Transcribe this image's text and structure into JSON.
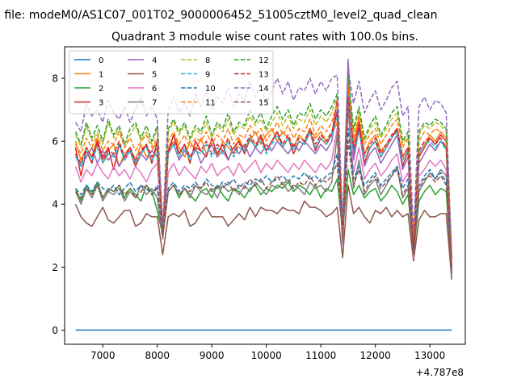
{
  "figure": {
    "suptitle": "n file: modeM0/AS1C07_001T02_9000006452_51005cztM0_level2_quad_clean",
    "title": "Quadrant 3 module wise count rates with 100.0s bins."
  },
  "chart_data": {
    "type": "line",
    "title": "Quadrant 3 module wise count rates with 100.0s bins.",
    "xlabel": "",
    "ylabel": "",
    "x_offset_label": "+4.787e8",
    "xlim": [
      6300,
      13650
    ],
    "ylim": [
      -0.45,
      9.0
    ],
    "x_ticks": [
      7000,
      8000,
      9000,
      10000,
      11000,
      12000,
      13000
    ],
    "x_tick_labels": [
      "7000",
      "8000",
      "9000",
      "10000",
      "11000",
      "12000",
      "13000"
    ],
    "y_ticks": [
      0,
      2,
      4,
      6,
      8
    ],
    "y_tick_labels": [
      "0",
      "2",
      "4",
      "6",
      "8"
    ],
    "grid": false,
    "legend_placement": "top-left",
    "legend_columns": 4,
    "x_start": 6500,
    "x_step": 100,
    "series": [
      {
        "name": "0",
        "color": "#1f77b4",
        "dash": "solid",
        "values": [
          0,
          0,
          0,
          0,
          0,
          0,
          0,
          0,
          0,
          0,
          0,
          0,
          0,
          0,
          0,
          0,
          0,
          0,
          0,
          0,
          0,
          0,
          0,
          0,
          0,
          0,
          0,
          0,
          0,
          0,
          0,
          0,
          0,
          0,
          0,
          0,
          0,
          0,
          0,
          0,
          0,
          0,
          0,
          0,
          0,
          0,
          0,
          0,
          0,
          0,
          0,
          0,
          0,
          0,
          0,
          0,
          0,
          0,
          0,
          0,
          0,
          0,
          0,
          0,
          0,
          0,
          0,
          0,
          0,
          0
        ]
      },
      {
        "name": "1",
        "color": "#ff7f0e",
        "dash": "solid",
        "values": [
          6.0,
          5.4,
          5.8,
          5.5,
          6.1,
          5.3,
          5.7,
          5.9,
          5.2,
          5.6,
          5.8,
          5.4,
          5.9,
          5.5,
          5.7,
          6.0,
          2.9,
          5.6,
          6.2,
          5.8,
          5.5,
          6.0,
          5.7,
          6.1,
          5.6,
          5.9,
          5.5,
          6.0,
          5.8,
          5.6,
          6.1,
          5.7,
          6.0,
          6.3,
          5.9,
          6.2,
          6.4,
          6.0,
          6.3,
          6.1,
          5.8,
          6.2,
          6.0,
          6.4,
          6.1,
          6.3,
          6.0,
          6.2,
          6.6,
          3.2,
          7.9,
          5.9,
          6.8,
          5.6,
          6.0,
          6.2,
          5.7,
          5.9,
          6.1,
          6.4,
          5.5,
          5.8,
          2.6,
          5.6,
          5.9,
          6.2,
          6.0,
          6.3,
          6.1,
          2.1
        ]
      },
      {
        "name": "2",
        "color": "#2ca02c",
        "dash": "solid",
        "values": [
          4.5,
          4.1,
          4.6,
          4.3,
          4.7,
          4.2,
          4.5,
          4.4,
          4.6,
          4.2,
          4.5,
          4.3,
          4.1,
          4.6,
          4.4,
          3.8,
          3.0,
          4.4,
          4.6,
          4.2,
          4.5,
          4.3,
          4.1,
          4.4,
          4.5,
          4.2,
          4.6,
          4.3,
          4.1,
          4.5,
          4.4,
          4.2,
          4.5,
          4.6,
          4.3,
          4.5,
          4.4,
          4.6,
          4.5,
          4.7,
          4.4,
          4.6,
          4.5,
          4.3,
          4.6,
          4.2,
          4.5,
          4.4,
          4.8,
          3.1,
          5.1,
          4.3,
          4.6,
          4.2,
          4.4,
          4.5,
          4.1,
          4.3,
          4.6,
          4.4,
          4.0,
          4.3,
          2.4,
          4.1,
          4.4,
          4.6,
          4.3,
          4.5,
          4.4,
          1.8
        ]
      },
      {
        "name": "3",
        "color": "#d62728",
        "dash": "solid",
        "values": [
          5.8,
          4.9,
          5.7,
          5.3,
          6.0,
          5.5,
          5.8,
          5.1,
          5.9,
          5.4,
          5.7,
          5.2,
          5.6,
          5.9,
          5.3,
          6.0,
          3.1,
          5.7,
          6.2,
          5.6,
          5.9,
          5.3,
          6.0,
          5.7,
          5.5,
          6.1,
          5.6,
          5.9,
          5.4,
          5.8,
          6.0,
          5.6,
          6.1,
          5.8,
          6.2,
          5.7,
          6.0,
          6.3,
          5.8,
          6.1,
          5.6,
          6.0,
          5.9,
          6.3,
          5.7,
          6.1,
          5.9,
          6.2,
          7.3,
          3.0,
          7.6,
          5.6,
          6.6,
          5.3,
          5.8,
          6.0,
          5.5,
          5.8,
          6.1,
          6.4,
          5.2,
          5.7,
          2.4,
          5.5,
          5.8,
          6.1,
          5.9,
          6.2,
          6.0,
          2.0
        ]
      },
      {
        "name": "4",
        "color": "#9467bd",
        "dash": "solid",
        "values": [
          5.6,
          5.2,
          5.5,
          5.8,
          5.3,
          5.7,
          5.4,
          5.6,
          5.2,
          5.5,
          5.8,
          5.3,
          5.6,
          5.4,
          5.7,
          5.5,
          2.9,
          5.6,
          5.9,
          5.4,
          5.7,
          5.5,
          5.8,
          5.3,
          5.6,
          5.9,
          5.5,
          5.7,
          5.4,
          5.8,
          5.6,
          5.9,
          5.5,
          5.8,
          5.6,
          5.9,
          5.7,
          6.0,
          5.8,
          5.6,
          5.9,
          5.7,
          6.0,
          5.8,
          5.6,
          5.9,
          5.7,
          6.0,
          7.0,
          3.0,
          8.6,
          5.4,
          6.4,
          5.2,
          5.6,
          5.8,
          5.3,
          5.6,
          5.9,
          6.2,
          5.1,
          5.5,
          2.3,
          5.3,
          5.6,
          5.9,
          5.7,
          6.0,
          5.8,
          1.9
        ]
      },
      {
        "name": "5",
        "color": "#8c564b",
        "dash": "solid",
        "values": [
          4.0,
          3.6,
          3.4,
          3.3,
          3.6,
          3.9,
          3.5,
          3.4,
          3.6,
          3.8,
          3.8,
          3.3,
          3.4,
          3.7,
          3.6,
          3.6,
          2.4,
          3.6,
          3.7,
          3.6,
          3.8,
          3.3,
          3.4,
          3.7,
          3.9,
          3.6,
          3.6,
          3.6,
          3.3,
          3.5,
          3.7,
          3.5,
          3.9,
          3.6,
          3.9,
          3.8,
          3.8,
          3.7,
          3.9,
          3.8,
          3.8,
          3.7,
          4.1,
          3.9,
          3.9,
          3.8,
          3.6,
          3.7,
          3.9,
          2.3,
          4.6,
          3.7,
          3.9,
          3.6,
          3.4,
          3.8,
          3.7,
          3.9,
          3.6,
          3.8,
          3.6,
          3.7,
          2.2,
          3.5,
          3.8,
          3.6,
          3.6,
          3.7,
          3.7,
          1.6
        ]
      },
      {
        "name": "6",
        "color": "#e377c2",
        "dash": "solid",
        "values": [
          5.2,
          4.7,
          5.1,
          4.9,
          5.3,
          5.0,
          4.8,
          5.2,
          4.9,
          5.1,
          4.8,
          5.2,
          5.0,
          4.7,
          5.1,
          5.3,
          2.9,
          5.0,
          5.3,
          4.9,
          5.2,
          5.0,
          4.8,
          5.2,
          5.0,
          5.3,
          4.9,
          5.1,
          5.2,
          4.9,
          5.3,
          5.0,
          5.2,
          5.4,
          5.0,
          5.3,
          5.1,
          5.4,
          5.2,
          5.0,
          5.3,
          5.1,
          5.4,
          5.2,
          5.0,
          5.3,
          5.1,
          5.4,
          6.4,
          2.7,
          7.2,
          5.0,
          5.8,
          4.8,
          5.1,
          5.3,
          4.9,
          5.1,
          5.4,
          5.6,
          4.7,
          5.0,
          2.3,
          4.9,
          5.1,
          5.4,
          5.2,
          5.4,
          5.1,
          1.9
        ]
      },
      {
        "name": "7",
        "color": "#7f7f7f",
        "dash": "solid",
        "values": [
          4.4,
          4.0,
          4.5,
          4.2,
          4.6,
          4.1,
          4.4,
          4.3,
          4.5,
          4.1,
          4.4,
          4.2,
          4.6,
          4.3,
          4.5,
          4.2,
          2.9,
          4.4,
          4.6,
          4.3,
          4.5,
          4.2,
          4.6,
          4.4,
          4.3,
          4.5,
          4.2,
          4.6,
          4.4,
          4.5,
          4.3,
          4.6,
          4.4,
          4.7,
          4.5,
          4.3,
          4.6,
          4.5,
          4.7,
          4.4,
          4.6,
          4.5,
          4.3,
          4.7,
          4.5,
          4.6,
          4.4,
          4.7,
          6.2,
          2.8,
          7.1,
          4.5,
          5.4,
          4.3,
          4.6,
          4.8,
          4.3,
          4.6,
          4.9,
          5.2,
          4.2,
          4.5,
          2.4,
          4.4,
          4.7,
          5.0,
          4.8,
          5.1,
          4.9,
          1.7
        ]
      },
      {
        "name": "8",
        "color": "#bcbd22",
        "dash": "dashed",
        "values": [
          6.2,
          5.8,
          6.5,
          6.0,
          6.3,
          5.9,
          6.6,
          6.1,
          6.4,
          5.8,
          6.2,
          6.5,
          6.0,
          6.3,
          5.9,
          6.4,
          3.2,
          6.3,
          6.6,
          6.2,
          6.5,
          6.0,
          6.4,
          6.2,
          6.6,
          6.1,
          6.5,
          6.3,
          6.7,
          6.2,
          6.5,
          6.4,
          6.8,
          6.5,
          6.7,
          6.3,
          6.6,
          6.9,
          6.5,
          6.8,
          6.4,
          6.7,
          6.6,
          7.0,
          6.5,
          6.8,
          6.6,
          6.9,
          7.4,
          3.3,
          8.0,
          6.3,
          7.0,
          6.0,
          6.4,
          6.6,
          6.1,
          6.4,
          6.7,
          6.9,
          5.9,
          6.2,
          2.8,
          6.2,
          6.5,
          6.4,
          6.6,
          6.5,
          6.3,
          2.2
        ]
      },
      {
        "name": "9",
        "color": "#17becf",
        "dash": "dashed",
        "values": [
          5.5,
          5.2,
          5.7,
          5.4,
          5.8,
          5.3,
          5.6,
          5.5,
          5.9,
          5.4,
          5.7,
          5.3,
          5.6,
          5.8,
          5.4,
          5.7,
          3.0,
          5.6,
          5.9,
          5.5,
          5.8,
          5.4,
          5.7,
          5.6,
          5.9,
          5.5,
          5.8,
          5.6,
          6.0,
          5.5,
          5.8,
          5.7,
          6.1,
          5.8,
          6.0,
          5.6,
          5.9,
          6.2,
          5.8,
          6.1,
          5.7,
          6.0,
          5.9,
          6.3,
          5.8,
          6.1,
          5.9,
          6.2,
          6.8,
          3.1,
          7.5,
          5.7,
          6.3,
          5.5,
          5.8,
          6.0,
          5.5,
          5.8,
          6.1,
          6.3,
          5.4,
          5.7,
          2.6,
          5.6,
          5.9,
          6.0,
          5.8,
          6.0,
          5.7,
          2.0
        ]
      },
      {
        "name": "10",
        "color": "#1f77b4",
        "dash": "dashed",
        "values": [
          4.5,
          4.3,
          4.6,
          4.4,
          4.7,
          4.5,
          4.4,
          4.6,
          4.3,
          4.5,
          4.7,
          4.4,
          4.6,
          4.5,
          4.3,
          4.6,
          3.1,
          4.5,
          4.7,
          4.4,
          4.6,
          4.5,
          4.7,
          4.5,
          4.8,
          4.6,
          4.5,
          4.7,
          4.6,
          4.8,
          4.5,
          4.7,
          4.6,
          4.8,
          4.7,
          4.9,
          4.7,
          4.8,
          4.9,
          4.7,
          4.9,
          4.8,
          5.0,
          4.8,
          4.9,
          4.7,
          4.9,
          5.0,
          5.6,
          3.0,
          6.4,
          4.8,
          5.2,
          4.6,
          4.8,
          5.0,
          4.6,
          4.8,
          5.0,
          5.2,
          4.5,
          4.8,
          2.5,
          4.6,
          4.9,
          5.1,
          4.8,
          5.0,
          4.7,
          1.9
        ]
      },
      {
        "name": "11",
        "color": "#ff7f0e",
        "dash": "dashed",
        "values": [
          5.9,
          5.6,
          6.1,
          5.8,
          6.2,
          5.7,
          6.0,
          5.9,
          6.3,
          5.8,
          6.1,
          5.7,
          6.0,
          6.2,
          5.8,
          6.1,
          3.1,
          6.0,
          6.3,
          5.9,
          6.2,
          5.8,
          6.1,
          6.0,
          6.3,
          5.9,
          6.2,
          6.0,
          6.4,
          5.9,
          6.2,
          6.1,
          6.5,
          6.2,
          6.4,
          6.0,
          6.3,
          6.6,
          6.2,
          6.5,
          6.1,
          6.4,
          6.3,
          6.7,
          6.2,
          6.5,
          6.3,
          6.6,
          7.2,
          3.2,
          7.8,
          6.1,
          6.8,
          5.9,
          6.2,
          6.4,
          5.9,
          6.2,
          6.5,
          6.7,
          5.8,
          6.1,
          2.7,
          6.0,
          6.3,
          6.2,
          6.4,
          6.3,
          6.1,
          2.1
        ]
      },
      {
        "name": "12",
        "color": "#2ca02c",
        "dash": "dashed",
        "values": [
          6.3,
          5.9,
          6.6,
          6.1,
          6.5,
          6.0,
          6.7,
          6.2,
          6.5,
          5.9,
          6.4,
          6.6,
          6.1,
          6.5,
          6.0,
          6.5,
          3.2,
          6.4,
          6.7,
          6.3,
          6.6,
          6.1,
          6.5,
          6.3,
          6.8,
          6.2,
          6.6,
          6.4,
          6.9,
          6.3,
          6.6,
          6.5,
          7.0,
          6.6,
          6.9,
          6.4,
          6.8,
          7.1,
          6.7,
          7.0,
          6.5,
          6.9,
          6.8,
          7.2,
          6.7,
          7.0,
          6.8,
          7.1,
          7.5,
          3.4,
          8.1,
          6.4,
          7.1,
          6.1,
          6.5,
          6.8,
          6.2,
          6.5,
          6.9,
          7.1,
          6.0,
          6.3,
          2.9,
          6.3,
          6.6,
          6.5,
          6.7,
          6.6,
          6.4,
          2.3
        ]
      },
      {
        "name": "13",
        "color": "#d62728",
        "dash": "dashed",
        "values": [
          5.6,
          5.3,
          5.8,
          5.5,
          5.9,
          5.4,
          5.7,
          5.6,
          6.0,
          5.5,
          5.8,
          5.4,
          5.7,
          5.9,
          5.5,
          5.8,
          3.0,
          5.7,
          6.0,
          5.6,
          5.9,
          5.5,
          5.8,
          5.7,
          6.0,
          5.6,
          5.9,
          5.7,
          6.1,
          5.6,
          5.9,
          5.8,
          6.2,
          5.9,
          6.1,
          5.7,
          6.0,
          6.3,
          5.9,
          6.2,
          5.8,
          6.1,
          6.0,
          6.4,
          5.9,
          6.2,
          6.0,
          6.3,
          6.9,
          3.1,
          7.4,
          5.8,
          6.4,
          5.6,
          5.9,
          6.1,
          5.6,
          5.9,
          6.2,
          6.4,
          5.5,
          5.8,
          2.6,
          5.7,
          6.0,
          6.1,
          5.9,
          6.1,
          5.8,
          2.0
        ]
      },
      {
        "name": "14",
        "color": "#9467bd",
        "dash": "dashed",
        "values": [
          6.6,
          6.3,
          7.2,
          6.8,
          7.0,
          6.6,
          7.3,
          6.9,
          6.7,
          7.1,
          6.6,
          7.0,
          7.4,
          6.8,
          7.1,
          6.7,
          3.3,
          7.0,
          7.4,
          6.9,
          7.2,
          6.8,
          7.5,
          7.1,
          7.6,
          7.0,
          7.4,
          7.2,
          7.7,
          7.1,
          7.5,
          7.3,
          7.9,
          7.4,
          7.8,
          7.2,
          7.6,
          8.0,
          7.5,
          7.9,
          7.3,
          7.7,
          7.6,
          8.0,
          7.5,
          7.9,
          7.6,
          8.0,
          8.1,
          3.5,
          8.3,
          7.2,
          7.9,
          6.9,
          7.3,
          7.6,
          7.0,
          7.3,
          7.7,
          7.9,
          6.8,
          7.1,
          3.0,
          7.1,
          7.4,
          7.0,
          7.3,
          7.2,
          6.9,
          2.4
        ]
      },
      {
        "name": "15",
        "color": "#8c564b",
        "dash": "dashed",
        "values": [
          4.4,
          4.2,
          4.5,
          4.3,
          4.6,
          4.2,
          4.5,
          4.4,
          4.6,
          4.3,
          4.5,
          4.2,
          4.4,
          4.6,
          4.3,
          4.5,
          3.0,
          4.4,
          4.6,
          4.3,
          4.5,
          4.4,
          4.6,
          4.5,
          4.7,
          4.4,
          4.6,
          4.5,
          4.7,
          4.4,
          4.6,
          4.5,
          4.8,
          4.6,
          4.8,
          4.5,
          4.7,
          4.9,
          4.6,
          4.8,
          4.5,
          4.7,
          4.6,
          4.9,
          4.6,
          4.8,
          4.7,
          4.9,
          5.3,
          2.9,
          6.0,
          4.6,
          5.1,
          4.4,
          4.7,
          4.9,
          4.5,
          4.7,
          4.9,
          5.1,
          4.3,
          4.6,
          2.4,
          4.5,
          4.8,
          4.9,
          4.7,
          4.9,
          4.6,
          1.8
        ]
      }
    ]
  }
}
